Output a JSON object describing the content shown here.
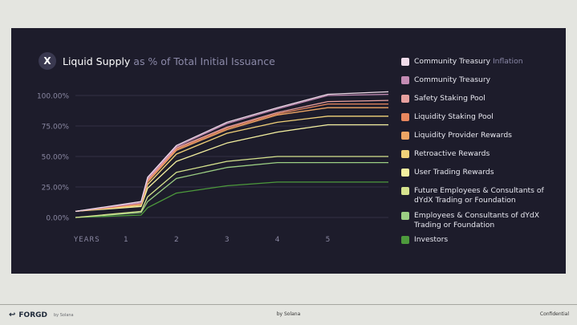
{
  "title": {
    "logo_letter": "X",
    "main": "Liquid Supply",
    "sub": "as % of Total Initial Issuance"
  },
  "footer": {
    "brand": "FORGD",
    "brand_by": "by Solana",
    "center": "by Solana",
    "right": "Confidential"
  },
  "colors": {
    "background": "#1d1c2b",
    "page": "#e4e5e0",
    "grid": "#3a394e",
    "tick_text": "#8a88a2"
  },
  "chart_data": {
    "type": "line",
    "title": "Liquid Supply as % of Total Initial Issuance",
    "xlabel": "YEARS",
    "ylabel": "",
    "xlim": [
      0,
      6.2
    ],
    "ylim": [
      0,
      100
    ],
    "x_ticks": [
      1,
      2,
      3,
      4,
      5
    ],
    "y_ticks": [
      0,
      25,
      50,
      75,
      100
    ],
    "y_tick_labels": [
      "0.00%",
      "25.00%",
      "50.00%",
      "75.00%",
      "100.00%"
    ],
    "grid": true,
    "legend_position": "right",
    "series": [
      {
        "name": "Community Treasury",
        "name_suffix": "Inflation",
        "color": "#f0dcea",
        "x": [
          0,
          1.3,
          1.43,
          2,
          3,
          4,
          5,
          6.2
        ],
        "y": [
          5,
          13,
          33,
          59,
          78,
          90,
          101,
          103
        ]
      },
      {
        "name": "Community Treasury",
        "name_suffix": "",
        "color": "#c48bb4",
        "x": [
          0,
          1.3,
          1.43,
          2,
          3,
          4,
          5,
          6.2
        ],
        "y": [
          5,
          12,
          32,
          58,
          77,
          89,
          100,
          101
        ]
      },
      {
        "name": "Safety Staking Pool",
        "name_suffix": "",
        "color": "#e7a09f",
        "x": [
          0,
          1.3,
          1.43,
          2,
          3,
          4,
          5,
          6.2
        ],
        "y": [
          5,
          12,
          31,
          57,
          74,
          86,
          95,
          96
        ]
      },
      {
        "name": "Liquidity Staking Pool",
        "name_suffix": "",
        "color": "#e8875e",
        "x": [
          0,
          1.3,
          1.43,
          2,
          3,
          4,
          5,
          6.2
        ],
        "y": [
          5,
          11,
          30,
          56,
          73,
          85,
          93,
          93
        ]
      },
      {
        "name": "Liquidity Provider Rewards",
        "name_suffix": "",
        "color": "#eda564",
        "x": [
          0,
          1.3,
          1.43,
          2,
          3,
          4,
          5,
          6.2
        ],
        "y": [
          5,
          11,
          29,
          55,
          72,
          84,
          90,
          90
        ]
      },
      {
        "name": "Retroactive Rewards",
        "name_suffix": "",
        "color": "#f1d27a",
        "x": [
          0,
          1.3,
          1.43,
          2,
          3,
          4,
          5,
          6.2
        ],
        "y": [
          5,
          10,
          27,
          52,
          69,
          78,
          83,
          83
        ]
      },
      {
        "name": "User Trading Rewards",
        "name_suffix": "",
        "color": "#f4f0a0",
        "x": [
          0,
          1.3,
          1.43,
          2,
          3,
          4,
          5,
          6.2
        ],
        "y": [
          5,
          9,
          24,
          46,
          61,
          70,
          76,
          76
        ]
      },
      {
        "name": "Future Employees & Consultants of dYdX Trading or Foundation",
        "name_suffix": "",
        "color": "#d6e38e",
        "x": [
          0,
          1.3,
          1.43,
          2,
          3,
          4,
          5,
          6.2
        ],
        "y": [
          0,
          5,
          17,
          37,
          46,
          50,
          50,
          50
        ]
      },
      {
        "name": "Employees & Consultants of dYdX Trading or Foundation",
        "name_suffix": "",
        "color": "#9ccf84",
        "x": [
          0,
          1.3,
          1.43,
          2,
          3,
          4,
          5,
          6.2
        ],
        "y": [
          0,
          4,
          13,
          32,
          41,
          45,
          45,
          45
        ]
      },
      {
        "name": "Investors",
        "name_suffix": "",
        "color": "#4d9a3c",
        "x": [
          0,
          1.3,
          1.43,
          2,
          3,
          4,
          5,
          6.2
        ],
        "y": [
          0,
          2,
          8,
          20,
          26,
          29,
          29,
          29
        ]
      }
    ]
  }
}
